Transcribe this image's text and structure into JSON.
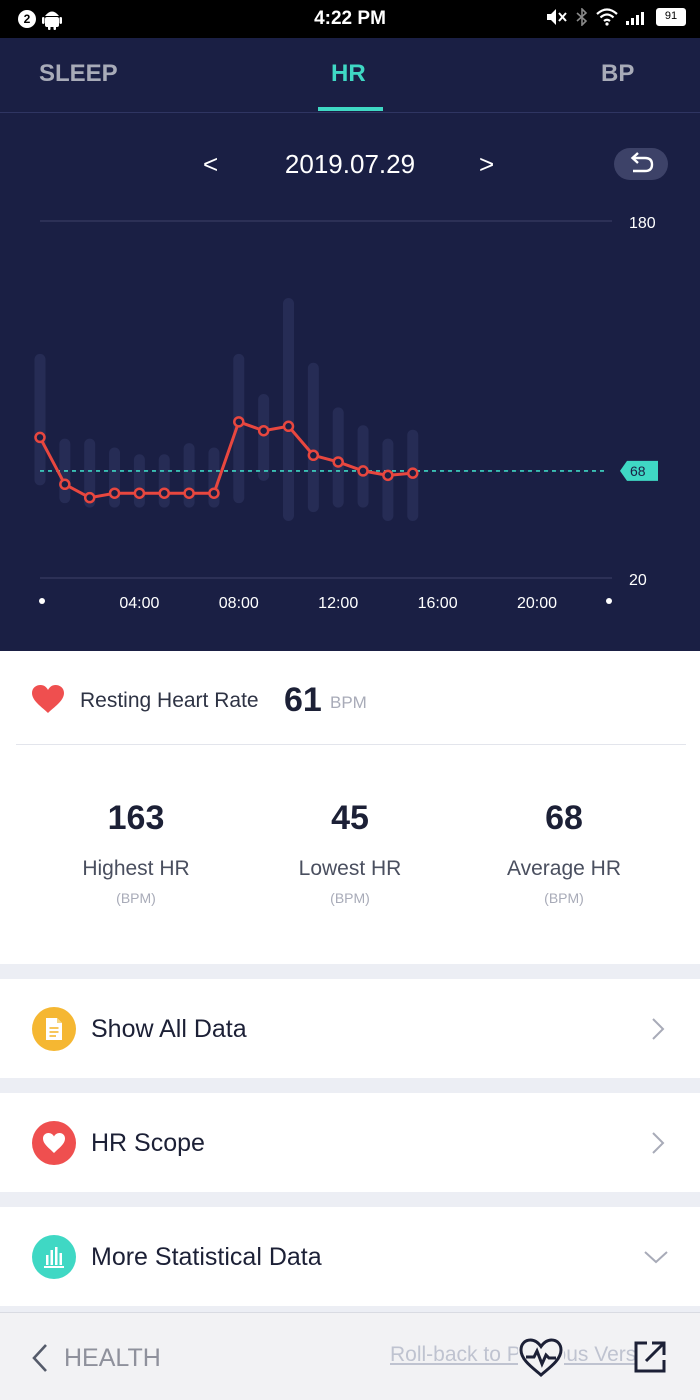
{
  "status_bar": {
    "notification_count": "2",
    "time": "4:22 PM",
    "battery": "91"
  },
  "tabs": [
    {
      "label": "SLEEP",
      "active": false
    },
    {
      "label": "HR",
      "active": true
    },
    {
      "label": "BP",
      "active": false
    }
  ],
  "date_nav": {
    "prev": "<",
    "date": "2019.07.29",
    "next": ">"
  },
  "chart_data": {
    "type": "line",
    "y_axis_labels": [
      "180",
      "20"
    ],
    "ylim": [
      20,
      180
    ],
    "x_tick_labels": [
      "04:00",
      "08:00",
      "12:00",
      "16:00",
      "20:00"
    ],
    "average_line": {
      "value": 68,
      "label": "68"
    },
    "series": [
      {
        "x": [
          "00:00",
          "01:00",
          "02:00",
          "03:00",
          "04:00",
          "05:00",
          "06:00",
          "07:00",
          "08:00",
          "09:00",
          "10:00",
          "11:00",
          "12:00",
          "13:00",
          "14:00",
          "15:00"
        ],
        "values": [
          83,
          62,
          56,
          58,
          58,
          58,
          58,
          58,
          90,
          86,
          88,
          75,
          72,
          68,
          66,
          67
        ]
      }
    ],
    "range_bars": [
      {
        "hour": 0,
        "min": 64,
        "max": 118
      },
      {
        "hour": 1,
        "min": 56,
        "max": 80
      },
      {
        "hour": 2,
        "min": 54,
        "max": 80
      },
      {
        "hour": 3,
        "min": 54,
        "max": 76
      },
      {
        "hour": 4,
        "min": 54,
        "max": 73
      },
      {
        "hour": 5,
        "min": 54,
        "max": 73
      },
      {
        "hour": 6,
        "min": 54,
        "max": 78
      },
      {
        "hour": 7,
        "min": 54,
        "max": 76
      },
      {
        "hour": 8,
        "min": 56,
        "max": 118
      },
      {
        "hour": 9,
        "min": 66,
        "max": 100
      },
      {
        "hour": 10,
        "min": 48,
        "max": 143
      },
      {
        "hour": 11,
        "min": 52,
        "max": 114
      },
      {
        "hour": 12,
        "min": 54,
        "max": 94
      },
      {
        "hour": 13,
        "min": 54,
        "max": 86
      },
      {
        "hour": 14,
        "min": 48,
        "max": 80
      },
      {
        "hour": 15,
        "min": 48,
        "max": 84
      }
    ],
    "colors": {
      "line": "#e8473f",
      "average": "#3fd8c4",
      "range_bar": "#262c55",
      "axis": "#3d4268"
    }
  },
  "resting": {
    "label": "Resting Heart Rate",
    "value": "61",
    "unit": "BPM"
  },
  "stats": [
    {
      "value": "163",
      "label": "Highest HR",
      "unit": "(BPM)"
    },
    {
      "value": "45",
      "label": "Lowest HR",
      "unit": "(BPM)"
    },
    {
      "value": "68",
      "label": "Average HR",
      "unit": "(BPM)"
    }
  ],
  "menu": [
    {
      "label": "Show All Data",
      "icon": "document-icon",
      "color": "#f5b732",
      "chevron": "right"
    },
    {
      "label": "HR Scope",
      "icon": "heart-icon",
      "color": "#ef4f4f",
      "chevron": "right"
    },
    {
      "label": "More Statistical Data",
      "icon": "bar-chart-icon",
      "color": "#3fd8c4",
      "chevron": "down"
    }
  ],
  "bottom_bar": {
    "back_label": "HEALTH",
    "rollback_text": "Roll-back to Previous Version"
  },
  "colors": {
    "accent": "#3fd8c4",
    "header_bg": "#1a1f44",
    "heart": "#ef4f4f"
  }
}
